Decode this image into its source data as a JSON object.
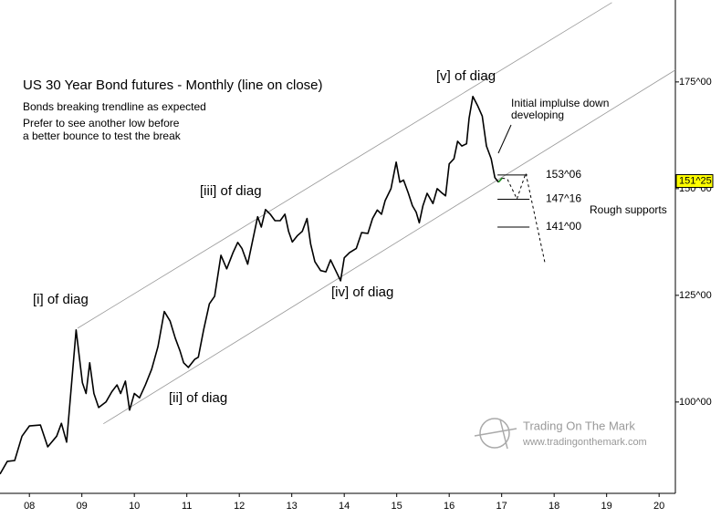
{
  "chart_data": {
    "type": "line",
    "title": "US 30 Year Bond futures - Monthly (line on close)",
    "subtitle": [
      "Bonds breaking trendline as expected",
      "Prefer to see another low before",
      "a better bounce to test the break"
    ],
    "xlim": [
      2007.44,
      2020.31
    ],
    "ylim": [
      78.6,
      194.2
    ],
    "xticks": [
      {
        "value": 2008,
        "label": "08"
      },
      {
        "value": 2009,
        "label": "09"
      },
      {
        "value": 2010,
        "label": "10"
      },
      {
        "value": 2011,
        "label": "11"
      },
      {
        "value": 2012,
        "label": "12"
      },
      {
        "value": 2013,
        "label": "13"
      },
      {
        "value": 2014,
        "label": "14"
      },
      {
        "value": 2015,
        "label": "15"
      },
      {
        "value": 2016,
        "label": "16"
      },
      {
        "value": 2017,
        "label": "17"
      },
      {
        "value": 2018,
        "label": "18"
      },
      {
        "value": 2019,
        "label": "19"
      },
      {
        "value": 2020,
        "label": "20"
      }
    ],
    "yticks": [
      {
        "value": 100,
        "label": "100^00"
      },
      {
        "value": 125,
        "label": "125^00"
      },
      {
        "value": 150,
        "label": "150^00"
      },
      {
        "value": 175,
        "label": "175^00"
      }
    ],
    "series": [
      {
        "color": "#000000",
        "x": [
          2007.44,
          2007.58,
          2007.72,
          2007.86,
          2008.0,
          2008.21,
          2008.35,
          2008.52,
          2008.61,
          2008.71,
          2008.89,
          2009.01,
          2009.08,
          2009.15,
          2009.23,
          2009.32,
          2009.46,
          2009.57,
          2009.67,
          2009.74,
          2009.83,
          2009.91,
          2010.0,
          2010.1,
          2010.21,
          2010.33,
          2010.45,
          2010.57,
          2010.68,
          2010.78,
          2010.87,
          2010.94,
          2011.03,
          2011.15,
          2011.22,
          2011.32,
          2011.43,
          2011.53,
          2011.65,
          2011.76,
          2011.88,
          2011.97,
          2012.05,
          2012.16,
          2012.24,
          2012.35,
          2012.42,
          2012.5,
          2012.59,
          2012.68,
          2012.78,
          2012.87,
          2012.94,
          2013.01,
          2013.11,
          2013.2,
          2013.29,
          2013.36,
          2013.44,
          2013.55,
          2013.65,
          2013.74,
          2013.83,
          2013.93,
          2014.0,
          2014.1,
          2014.23,
          2014.33,
          2014.45,
          2014.54,
          2014.63,
          2014.71,
          2014.78,
          2014.89,
          2014.99,
          2015.06,
          2015.13,
          2015.22,
          2015.3,
          2015.37,
          2015.43,
          2015.5,
          2015.58,
          2015.69,
          2015.77,
          2015.86,
          2015.93,
          2016.0,
          2016.09,
          2016.16,
          2016.24,
          2016.33,
          2016.38,
          2016.45,
          2016.54,
          2016.63,
          2016.71,
          2016.8,
          2016.87,
          2016.94
        ],
        "values": [
          83.1,
          86.1,
          86.3,
          92,
          94.4,
          94.6,
          89.5,
          92,
          95,
          90.6,
          116.9,
          104.5,
          102,
          109.2,
          102,
          98.7,
          100,
          102.4,
          104,
          102,
          104.9,
          98.1,
          102,
          101,
          104,
          107.7,
          113,
          121.2,
          119,
          115,
          112,
          109.2,
          108.1,
          110,
          110.5,
          116.9,
          123,
          124.8,
          134.4,
          131.2,
          135,
          137.4,
          136,
          132.3,
          137,
          143.4,
          141,
          145.1,
          144,
          142.5,
          142.5,
          144,
          140,
          137.5,
          139,
          140,
          143,
          137,
          132.9,
          130.8,
          130.5,
          133.3,
          131,
          128.4,
          133.8,
          135,
          136,
          139.7,
          139.5,
          143,
          145,
          144,
          147.2,
          150,
          156.2,
          151.5,
          152,
          149,
          146,
          144.5,
          142,
          146,
          148.9,
          146.5,
          150,
          149,
          148.3,
          155.8,
          157,
          161.1,
          160,
          160.5,
          166.5,
          171.6,
          169.5,
          167,
          160,
          157,
          152.6,
          151.5
        ]
      },
      {
        "color": "#1a8a1a",
        "x": [
          2016.94,
          2017.01
        ],
        "values": [
          151.5,
          152.5
        ]
      },
      {
        "color": "#000000",
        "dashed": true,
        "x": [
          2017.01,
          2017.11,
          2017.29,
          2017.46,
          2017.83
        ],
        "values": [
          152.5,
          152.2,
          147.6,
          153.6,
          132.3
        ]
      }
    ],
    "trendlines": [
      {
        "x": [
          2008.92,
          2019.1
        ],
        "values": [
          117.3,
          193.6
        ]
      },
      {
        "x": [
          2009.41,
          2020.31
        ],
        "values": [
          94.9,
          177.8
        ]
      }
    ],
    "levels": [
      {
        "value": 153.19,
        "label": "153^06",
        "x": [
          2016.92,
          2017.49
        ]
      },
      {
        "value": 147.5,
        "label": "147^16",
        "x": [
          2016.92,
          2017.53
        ]
      },
      {
        "value": 141,
        "label": "141^00",
        "x": [
          2016.92,
          2017.53
        ]
      }
    ],
    "levels_note": "Rough supports",
    "last_price": {
      "value": 151.78,
      "label": "151^25"
    },
    "annotations": [
      "[i] of diag",
      "[ii] of diag",
      "[iii] of diag",
      "[iv] of diag",
      "[v] of diag",
      "Initial implulse down",
      "developing"
    ],
    "watermark": [
      "Trading On The Mark",
      "www.tradingonthemark.com"
    ]
  }
}
